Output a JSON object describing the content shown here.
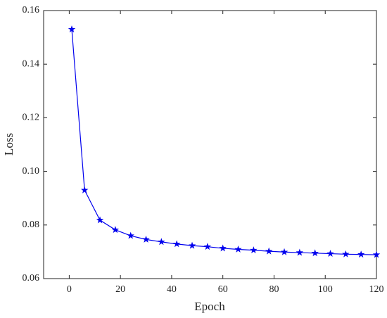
{
  "chart_data": {
    "type": "line",
    "x_label": "Epoch",
    "y_label": "Loss",
    "x": [
      1,
      6,
      12,
      18,
      24,
      30,
      36,
      42,
      48,
      54,
      60,
      66,
      72,
      78,
      84,
      90,
      96,
      102,
      108,
      114,
      120
    ],
    "series": [
      {
        "name": "Loss",
        "color": "#0000ee",
        "values": [
          0.153,
          0.093,
          0.0818,
          0.0782,
          0.076,
          0.0746,
          0.0737,
          0.0729,
          0.0723,
          0.0719,
          0.0713,
          0.0709,
          0.0706,
          0.0702,
          0.0699,
          0.0697,
          0.0695,
          0.0693,
          0.0691,
          0.069,
          0.0689
        ]
      }
    ],
    "xlim": [
      -10,
      120
    ],
    "xticks": [
      0,
      20,
      40,
      60,
      80,
      100,
      120
    ],
    "ylim": [
      0.06,
      0.16
    ],
    "yticks": [
      0.06,
      0.08,
      {
        "value": 0.1,
        "label": "0.10"
      },
      0.12,
      0.14,
      0.16
    ],
    "grid": false
  }
}
